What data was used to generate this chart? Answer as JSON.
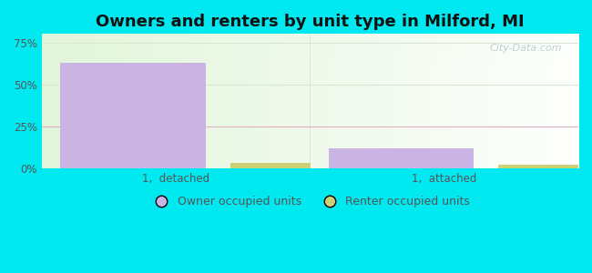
{
  "title": "Owners and renters by unit type in Milford, MI",
  "groups": [
    "1,  detached",
    "1,  attached"
  ],
  "owner_values": [
    63,
    12
  ],
  "renter_values": [
    3,
    2
  ],
  "owner_color": "#c9b4e3",
  "renter_color": "#cdd175",
  "yticks": [
    0,
    25,
    50,
    75
  ],
  "ytick_labels": [
    "0%",
    "25%",
    "50%",
    "75%"
  ],
  "ylim": [
    0,
    80
  ],
  "background_outer": "#00e8f0",
  "background_inner_topleft": "#ddf0d8",
  "background_inner_topright": "#ffffff",
  "background_inner_bottomleft": "#c8e8b8",
  "background_inner_bottomright": "#e8f8e0",
  "bar_width": 0.3,
  "group_positions": [
    0.25,
    0.75
  ],
  "watermark": "City-Data.com",
  "legend_owner": "Owner occupied units",
  "legend_renter": "Renter occupied units",
  "title_fontsize": 13,
  "tick_fontsize": 8.5,
  "legend_fontsize": 9,
  "grid_color_25": "#e8b8c8",
  "grid_color_50": "#e0e8d0",
  "grid_color_75": "#e0e8d0"
}
